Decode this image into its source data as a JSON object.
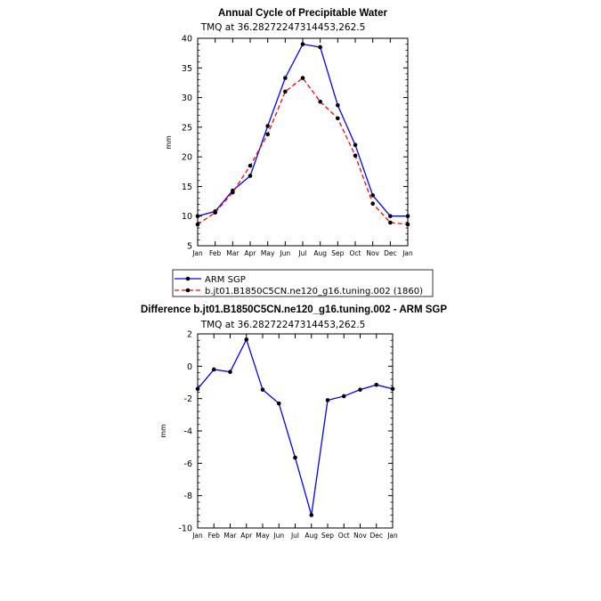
{
  "chart_data": [
    {
      "type": "line",
      "title": "Annual Cycle of Precipitable Water",
      "subtitle": "TMQ at 36.28272247314453,262.5",
      "ylabel": "mm",
      "xlabel": "",
      "ylim": [
        5,
        40
      ],
      "yticks": [
        5,
        10,
        15,
        20,
        25,
        30,
        35,
        40
      ],
      "categories": [
        "Jan",
        "Feb",
        "Mar",
        "Apr",
        "May",
        "Jun",
        "Jul",
        "Aug",
        "Sep",
        "Oct",
        "Nov",
        "Dec",
        "Jan"
      ],
      "grid": false,
      "legend_position": "bottom",
      "series": [
        {
          "name": "ARM SGP",
          "color": "#0000ff",
          "dash": "solid",
          "values": [
            10.0,
            10.8,
            14.3,
            16.8,
            25.2,
            33.3,
            39.0,
            38.5,
            28.7,
            22.0,
            13.5,
            10.0,
            10.0
          ]
        },
        {
          "name": "b.jt01.B1850C5CN.ne120_g16.tuning.002 (1860)",
          "color": "#ff0000",
          "dash": "dashed",
          "values": [
            8.6,
            10.6,
            14.0,
            18.5,
            23.8,
            31.0,
            33.3,
            29.3,
            26.5,
            20.2,
            12.1,
            8.9,
            8.6
          ]
        }
      ]
    },
    {
      "type": "line",
      "title": "Difference b.jt01.B1850C5CN.ne120_g16.tuning.002 - ARM SGP",
      "subtitle": "TMQ at 36.28272247314453,262.5",
      "ylabel": "mm",
      "xlabel": "",
      "ylim": [
        -10,
        2
      ],
      "yticks": [
        -10,
        -8,
        -6,
        -4,
        -2,
        0,
        2
      ],
      "categories": [
        "Jan",
        "Feb",
        "Mar",
        "Apr",
        "May",
        "Jun",
        "Jul",
        "Aug",
        "Sep",
        "Oct",
        "Nov",
        "Dec",
        "Jan"
      ],
      "grid": false,
      "series": [
        {
          "color": "#0000ff",
          "dash": "solid",
          "values": [
            -1.4,
            -0.2,
            -0.35,
            1.65,
            -1.45,
            -2.3,
            -5.65,
            -9.2,
            -2.1,
            -1.85,
            -1.45,
            -1.15,
            -1.4
          ]
        }
      ]
    }
  ]
}
